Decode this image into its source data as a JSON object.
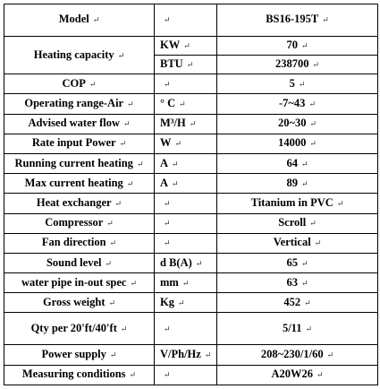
{
  "table": {
    "header": {
      "label": "Model",
      "model": "BS16-195T"
    },
    "heating": {
      "label": "Heating capacity",
      "rows": [
        {
          "unit": "KW",
          "value": "70"
        },
        {
          "unit": "BTU",
          "value": "238700"
        }
      ]
    },
    "rows": [
      {
        "label": "COP",
        "unit": "",
        "value": "5"
      },
      {
        "label": "Operating range-Air",
        "unit": "° C",
        "value": "-7~43"
      },
      {
        "label": "Advised water flow",
        "unit": "M³/H",
        "value": "20~30"
      },
      {
        "label": "Rate input Power",
        "unit": "W",
        "value": "14000"
      },
      {
        "label": "Running current heating",
        "unit": "A",
        "value": "64"
      },
      {
        "label": "Max current heating",
        "unit": "A",
        "value": "89"
      },
      {
        "label": "Heat exchanger",
        "unit": "",
        "value": "Titanium in PVC"
      },
      {
        "label": "Compressor",
        "unit": "",
        "value": "Scroll"
      },
      {
        "label": "Fan direction",
        "unit": "",
        "value": "Vertical"
      },
      {
        "label": "Sound level",
        "unit": "d B(A)",
        "value": "65"
      },
      {
        "label": "water pipe in-out spec",
        "unit": "mm",
        "value": "63"
      },
      {
        "label": "Gross weight",
        "unit": "Kg",
        "value": "452"
      },
      {
        "label": "Qty per 20'ft/40'ft",
        "unit": "",
        "value": "5/11"
      },
      {
        "label": "Power supply",
        "unit": "V/Ph/Hz",
        "value": "208~230/1/60"
      },
      {
        "label": "Measuring conditions",
        "unit": "",
        "value": "A20W26"
      }
    ],
    "paragraph_mark": "↵"
  }
}
